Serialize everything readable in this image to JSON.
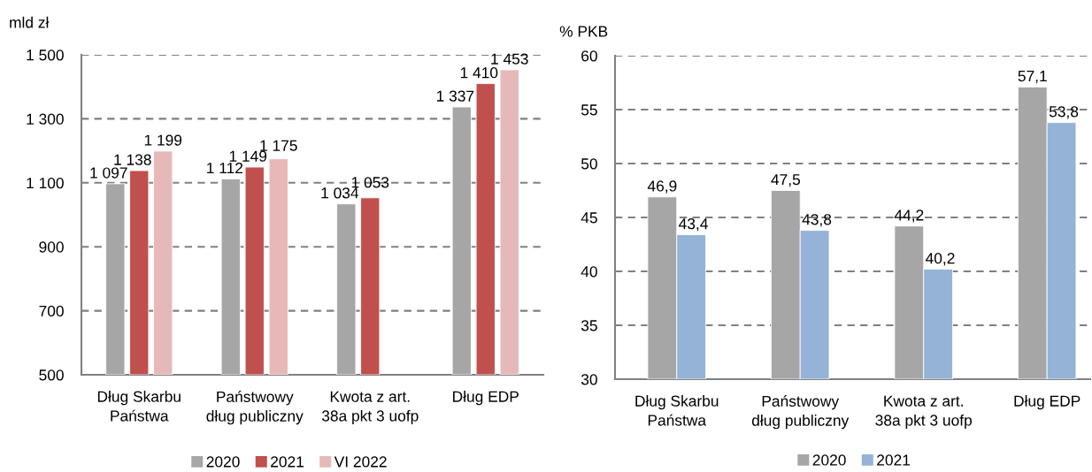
{
  "chart_data": [
    {
      "type": "bar",
      "ylabel": "mld zł",
      "categories": [
        "Dług Skarbu\nPaństwa",
        "Państwowy\ndług publiczny",
        "Kwota z art.\n38a pkt 3 uofp",
        "Dług EDP"
      ],
      "series": [
        {
          "name": "2020",
          "color": "#a6a6a6",
          "values": [
            1097,
            1112,
            1034,
            1337
          ],
          "value_labels": [
            "1 097",
            "1 112",
            "1 034",
            "1 337"
          ]
        },
        {
          "name": "2021",
          "color": "#c0504d",
          "values": [
            1138,
            1149,
            1053,
            1410
          ],
          "value_labels": [
            "1 138",
            "1 149",
            "1 053",
            "1 410"
          ]
        },
        {
          "name": "VI 2022",
          "color": "#e6b9b8",
          "values": [
            1199,
            1175,
            null,
            1453
          ],
          "value_labels": [
            "1 199",
            "1 175",
            null,
            "1 453"
          ]
        }
      ],
      "ylim": [
        500,
        1500
      ],
      "yticks": [
        500,
        700,
        900,
        {
          "value": 1100,
          "label": "1 100"
        },
        {
          "value": 1300,
          "label": "1 300"
        },
        {
          "value": 1500,
          "label": "1 500"
        }
      ],
      "grid": "y",
      "legend": "bottom"
    },
    {
      "type": "bar",
      "ylabel": "% PKB",
      "categories": [
        "Dług Skarbu\nPaństwa",
        "Państwowy\ndług publiczny",
        "Kwota z art.\n38a pkt 3 uofp",
        "Dług EDP"
      ],
      "series": [
        {
          "name": "2020",
          "color": "#a6a6a6",
          "values": [
            46.9,
            47.5,
            44.2,
            57.1
          ],
          "value_labels": [
            "46,9",
            "47,5",
            "44,2",
            "57,1"
          ]
        },
        {
          "name": "2021",
          "color": "#95b3d7",
          "values": [
            43.4,
            43.8,
            40.2,
            53.8
          ],
          "value_labels": [
            "43,4",
            "43,8",
            "40,2",
            "53,8"
          ]
        }
      ],
      "ylim": [
        30,
        60
      ],
      "yticks": [
        30,
        35,
        40,
        45,
        50,
        55,
        60
      ],
      "grid": "y",
      "legend": "bottom"
    }
  ]
}
